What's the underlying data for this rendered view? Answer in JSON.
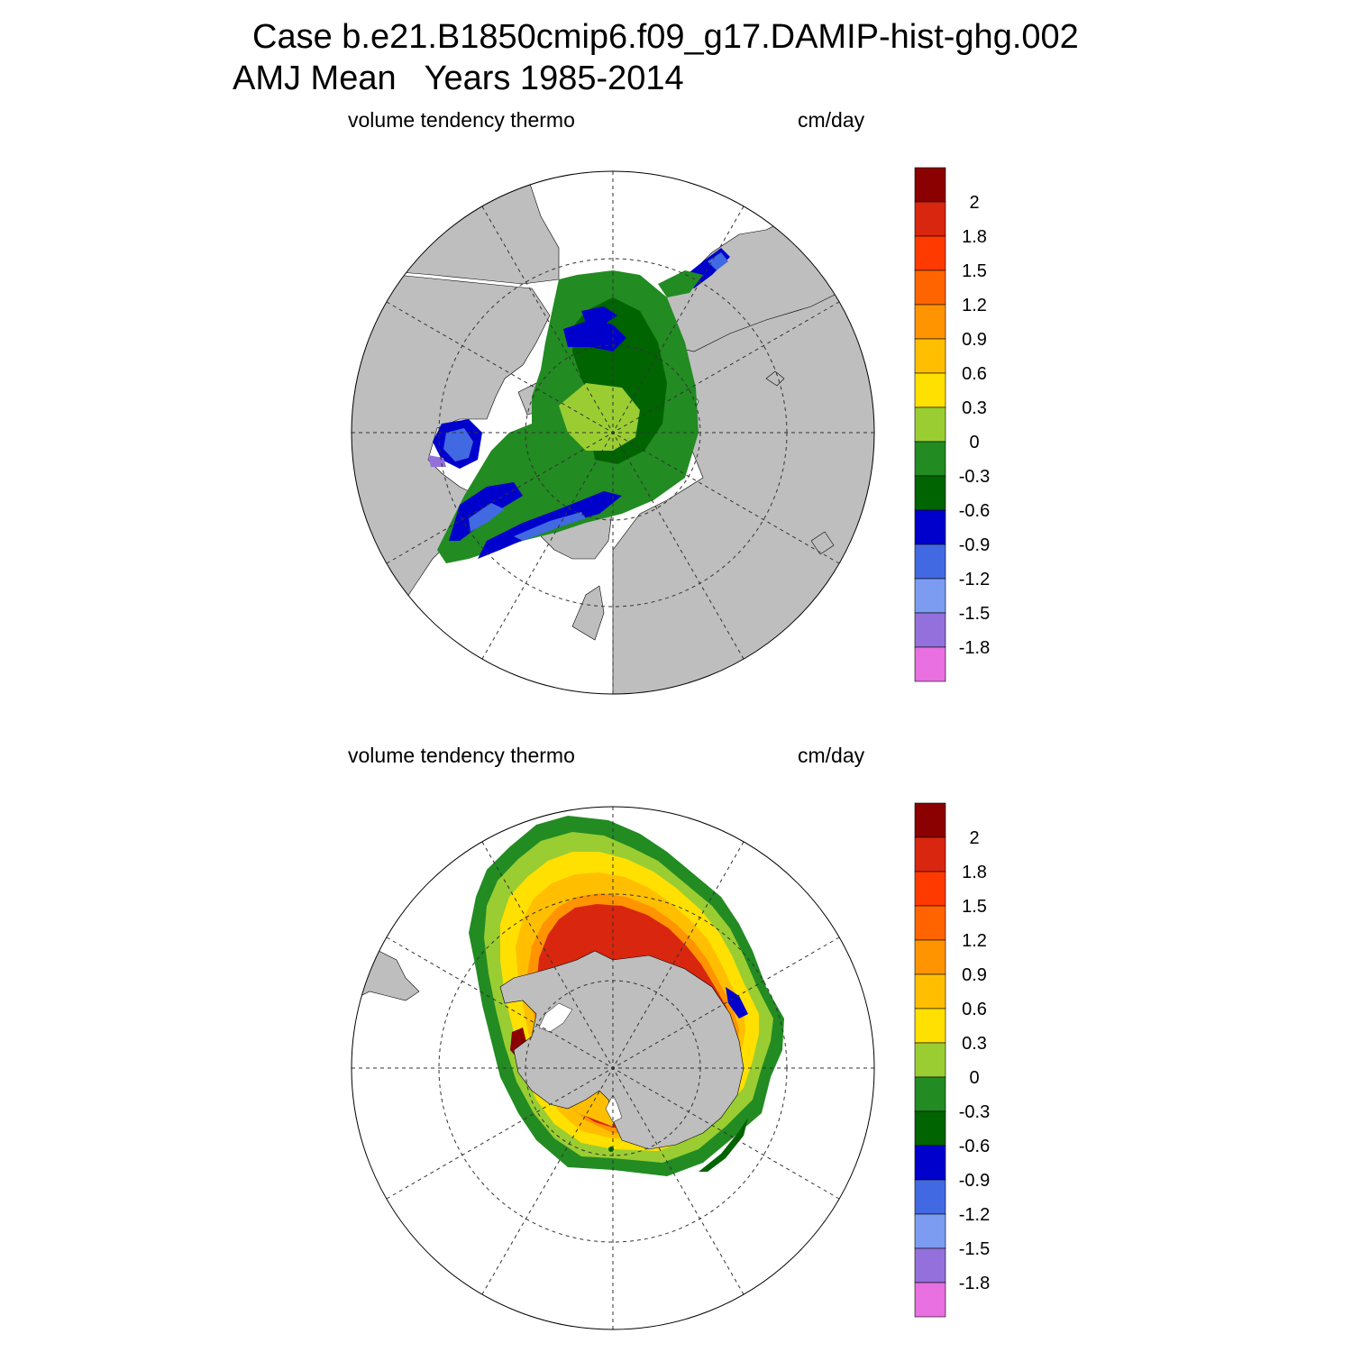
{
  "title": {
    "line1": "Case b.e21.B1850cmip6.f09_g17.DAMIP-hist-ghg.002",
    "line2": "AMJ Mean   Years 1985-2014"
  },
  "panels": [
    {
      "id": "north",
      "variable": "volume tendency thermo",
      "units": "cm/day",
      "hemisphere": "Northern"
    },
    {
      "id": "south",
      "variable": "volume tendency thermo",
      "units": "cm/day",
      "hemisphere": "Southern"
    }
  ],
  "colorbar": {
    "colors": [
      "#8b0000",
      "#d9260e",
      "#ff3a00",
      "#ff6400",
      "#ff9400",
      "#ffbf00",
      "#ffe000",
      "#9acd32",
      "#228b22",
      "#006400",
      "#0000cd",
      "#4169e1",
      "#7b9cf0",
      "#9370db",
      "#e870e0"
    ],
    "labels": [
      "2",
      "1.8",
      "1.5",
      "1.2",
      "0.9",
      "0.6",
      "0.3",
      "0",
      "-0.3",
      "-0.6",
      "-0.9",
      "-1.2",
      "-1.5",
      "-1.8"
    ]
  },
  "map_colors": {
    "land": "#bebebe",
    "ocean": "#ffffff",
    "grid": "#333333"
  }
}
